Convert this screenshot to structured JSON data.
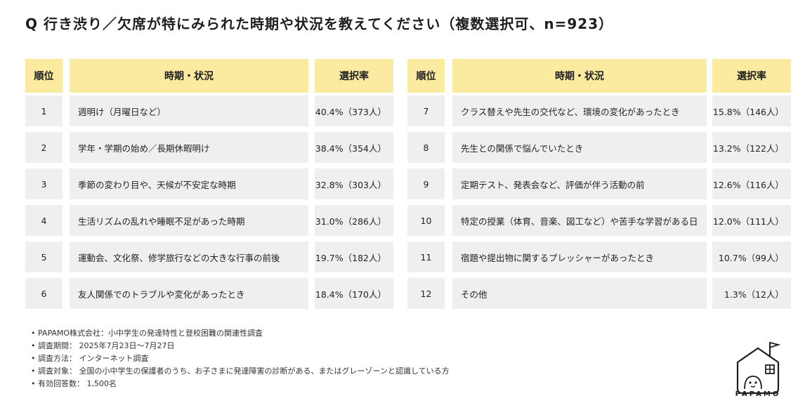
{
  "title": "Q 行き渋り／欠席が特にみられた時期や状況を教えてください（複数選択可、n=923）",
  "table": {
    "headers": {
      "rank": "順位",
      "item": "時期・状況",
      "rate": "選択率"
    }
  },
  "chart_data": {
    "type": "table",
    "title": "Q 行き渋り／欠席が特にみられた時期や状況を教えてください（複数選択可、n=923）",
    "columns": [
      "順位",
      "時期・状況",
      "選択率"
    ],
    "rows": [
      {
        "rank": "1",
        "item": "週明け（月曜日など）",
        "rate": "40.4%（373人）",
        "percent": 40.4,
        "count": 373
      },
      {
        "rank": "2",
        "item": "学年・学期の始め／長期休暇明け",
        "rate": "38.4%（354人）",
        "percent": 38.4,
        "count": 354
      },
      {
        "rank": "3",
        "item": "季節の変わり目や、天候が不安定な時期",
        "rate": "32.8%（303人）",
        "percent": 32.8,
        "count": 303
      },
      {
        "rank": "4",
        "item": "生活リズムの乱れや睡眠不足があった時期",
        "rate": "31.0%（286人）",
        "percent": 31.0,
        "count": 286
      },
      {
        "rank": "5",
        "item": "運動会、文化祭、修学旅行などの大きな行事の前後",
        "rate": "19.7%（182人）",
        "percent": 19.7,
        "count": 182
      },
      {
        "rank": "6",
        "item": "友人関係でのトラブルや変化があったとき",
        "rate": "18.4%（170人）",
        "percent": 18.4,
        "count": 170
      },
      {
        "rank": "7",
        "item": "クラス替えや先生の交代など、環境の変化があったとき",
        "rate": "15.8%（146人）",
        "percent": 15.8,
        "count": 146
      },
      {
        "rank": "8",
        "item": "先生との関係で悩んでいたとき",
        "rate": "13.2%（122人）",
        "percent": 13.2,
        "count": 122
      },
      {
        "rank": "9",
        "item": "定期テスト、発表会など、評価が伴う活動の前",
        "rate": "12.6%（116人）",
        "percent": 12.6,
        "count": 116
      },
      {
        "rank": "10",
        "item": "特定の授業（体育、音楽、図工など）や苦手な学習がある日",
        "rate": "12.0%（111人）",
        "percent": 12.0,
        "count": 111
      },
      {
        "rank": "11",
        "item": "宿題や提出物に関するプレッシャーがあったとき",
        "rate": "10.7%（99人）",
        "percent": 10.7,
        "count": 99
      },
      {
        "rank": "12",
        "item": "その他",
        "rate": "1.3%（12人）",
        "percent": 1.3,
        "count": 12
      }
    ]
  },
  "notes": [
    "PAPAMO株式会社：小中学生の発達特性と登校困難の関連性調査",
    "調査期間： 2025年7月23日〜7月27日",
    "調査方法： インターネット調査",
    "調査対象： 全国の小中学生の保護者のうち、お子さまに発達障害の診断がある、またはグレーゾーンと認識している方",
    "有効回答数： 1,500名"
  ],
  "logo": {
    "text": "PAPAMO",
    "icon": "house-logo-icon"
  },
  "colors": {
    "header": "#fbeba1",
    "cell": "#efefef",
    "text": "#222222"
  }
}
